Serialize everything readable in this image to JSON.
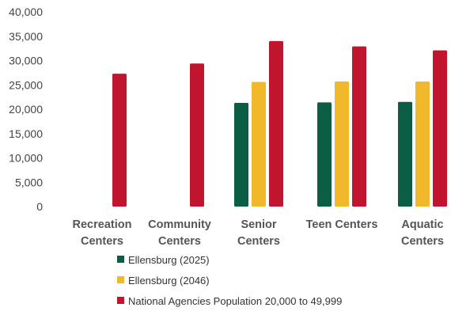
{
  "chart_data": {
    "type": "bar",
    "title": "",
    "xlabel": "",
    "ylabel": "",
    "ylim": [
      0,
      40000
    ],
    "yticks": [
      0,
      5000,
      10000,
      15000,
      20000,
      25000,
      30000,
      35000,
      40000
    ],
    "ytick_labels": [
      "0",
      "5,000",
      "10,000",
      "15,000",
      "20,000",
      "25,000",
      "30,000",
      "35,000",
      "40,000"
    ],
    "grid": false,
    "legend_position": "bottom",
    "categories": [
      [
        "Recreation",
        "Centers"
      ],
      [
        "Community",
        "Centers"
      ],
      [
        "Senior",
        "Centers"
      ],
      [
        "Teen Centers"
      ],
      [
        "Aquatic",
        "Centers"
      ]
    ],
    "series": [
      {
        "name": "Ellensburg (2025)",
        "color": "#0b5d44",
        "values": [
          null,
          null,
          21300,
          21400,
          21500
        ]
      },
      {
        "name": "Ellensburg (2046)",
        "color": "#f0b82a",
        "values": [
          null,
          null,
          25600,
          25700,
          25700
        ]
      },
      {
        "name": "National Agencies Population 20,000 to 49,999",
        "color": "#c0142f",
        "values": [
          27300,
          29400,
          34000,
          32900,
          32100
        ]
      }
    ]
  }
}
